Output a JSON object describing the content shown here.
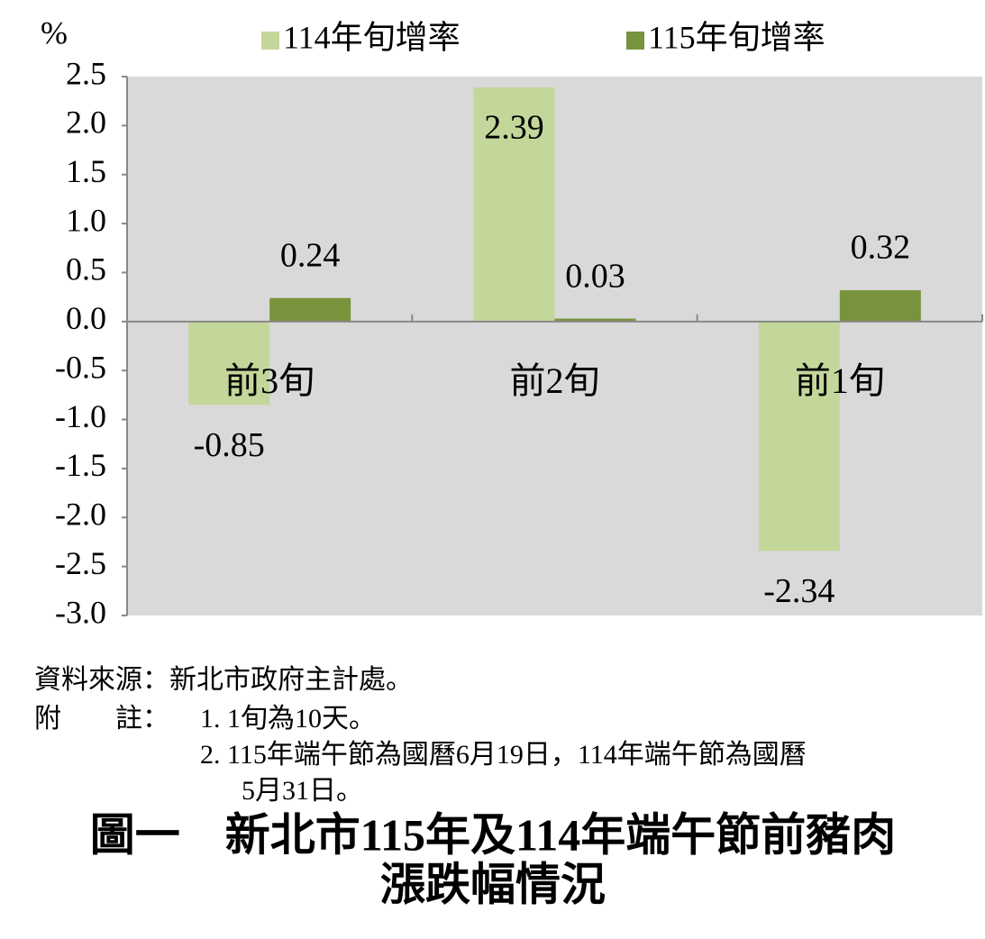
{
  "chart_data": {
    "type": "bar",
    "y_label": "%",
    "categories": [
      "前3旬",
      "前2旬",
      "前1旬"
    ],
    "series": [
      {
        "name": "114年旬增率",
        "color": "#c4d79b",
        "values": [
          -0.85,
          2.39,
          -2.34
        ]
      },
      {
        "name": "115年旬增率",
        "color": "#77933c",
        "values": [
          0.24,
          0.03,
          0.32
        ]
      }
    ],
    "ylim": [
      -3,
      2.5
    ],
    "yticks": [
      {
        "value": -3,
        "label": "-3.0"
      },
      -2.5,
      {
        "value": -2,
        "label": "-2.0"
      },
      -1.5,
      {
        "value": -1,
        "label": "-1.0"
      },
      -0.5,
      {
        "value": 0,
        "label": "0.0"
      },
      0.5,
      {
        "value": 1,
        "label": "1.0"
      },
      1.5,
      {
        "value": 2,
        "label": "2.0"
      },
      2.5
    ],
    "background": "#d9d9d9",
    "legend": "top",
    "title": [
      "圖一　新北市115年及114年端午節前豬肉",
      "漲跌幅情況"
    ]
  },
  "source": "資料來源：新北市政府主計處。",
  "note_label": "附　　註：",
  "notes": [
    "1. 1旬為10天。",
    "2. 115年端午節為國曆6月19日，114年端午節為國曆",
    "5月31日。"
  ]
}
